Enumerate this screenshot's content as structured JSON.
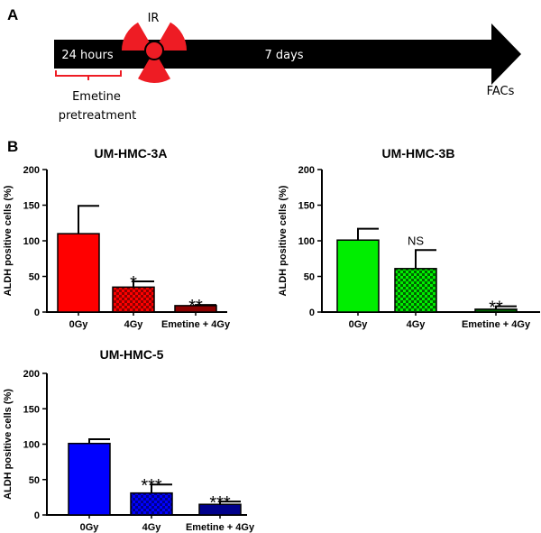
{
  "panel_a": {
    "letter": "A",
    "ir_label": "IR",
    "period_1": "24 hours",
    "period_2": "7 days",
    "pretreatment_line1": "Emetine",
    "pretreatment_line2": "pretreatment",
    "endpoint": "FACs",
    "arrow_color": "#000000",
    "radiation_color": "#ee1c24"
  },
  "panel_b": {
    "letter": "B"
  },
  "chart_data": [
    {
      "type": "bar",
      "title": "UM-HMC-3A",
      "ylabel": "ALDH positive cells (%)",
      "xlabel": "",
      "ylim": [
        0,
        200
      ],
      "yticks": [
        0,
        50,
        100,
        150,
        200
      ],
      "categories": [
        "0Gy",
        "4Gy",
        "Emetine + 4Gy"
      ],
      "values": [
        110,
        35,
        9
      ],
      "errors": [
        39,
        8,
        1
      ],
      "significance": [
        "",
        "*",
        "**"
      ],
      "colors": [
        "#ff0000",
        "#ff0000",
        "#8b0000"
      ],
      "patterns": [
        "solid",
        "checker",
        "solid"
      ]
    },
    {
      "type": "bar",
      "title": "UM-HMC-3B",
      "ylabel": "ALDH positive cells (%)",
      "xlabel": "",
      "ylim": [
        0,
        200
      ],
      "yticks": [
        0,
        50,
        100,
        150,
        200
      ],
      "categories": [
        "0Gy",
        "4Gy",
        "Emetine + 4Gy"
      ],
      "values": [
        101,
        61,
        4
      ],
      "errors": [
        16,
        26,
        4
      ],
      "significance": [
        "",
        "NS",
        "**"
      ],
      "colors": [
        "#00ee00",
        "#00ee00",
        "#006400"
      ],
      "patterns": [
        "solid",
        "checker",
        "solid"
      ]
    },
    {
      "type": "bar",
      "title": "UM-HMC-5",
      "ylabel": "ALDH positive cells (%)",
      "xlabel": "",
      "ylim": [
        0,
        200
      ],
      "yticks": [
        0,
        50,
        100,
        150,
        200
      ],
      "categories": [
        "0Gy",
        "4Gy",
        "Emetine + 4Gy"
      ],
      "values": [
        101,
        31,
        15
      ],
      "errors": [
        6,
        12,
        4
      ],
      "significance": [
        "",
        "***",
        "***"
      ],
      "colors": [
        "#0000ff",
        "#0000ff",
        "#00008b"
      ],
      "patterns": [
        "solid",
        "checker",
        "solid"
      ]
    }
  ]
}
